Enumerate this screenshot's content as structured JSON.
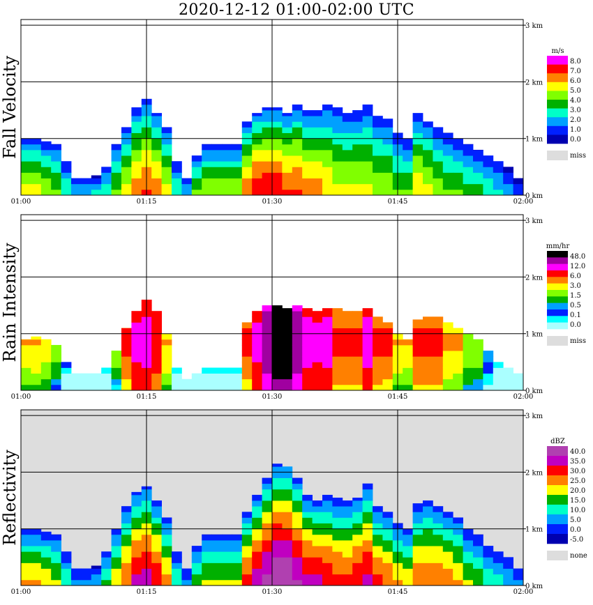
{
  "title": "2020-12-12   01:00-02:00 UTC",
  "chart_data": {
    "type": "heatmap",
    "x_ticks": [
      "01:00",
      "01:15",
      "01:30",
      "01:45",
      "02:00"
    ],
    "y_ticks": [
      "0 km",
      "1 km",
      "2 km",
      "3 km"
    ],
    "xlim": [
      "01:00",
      "02:00"
    ],
    "ylim": [
      0,
      3.1
    ],
    "grid": true,
    "panels": [
      {
        "label": "Fall Velocity",
        "unit": "m/s",
        "legend_labels": [
          "8.0",
          "7.0",
          "6.0",
          "5.0",
          "4.0",
          "3.0",
          "2.0",
          "1.0",
          "0.0"
        ],
        "legend_colors": [
          "#ff00ff",
          "#ff0000",
          "#ff8000",
          "#ffff00",
          "#80ff00",
          "#00b000",
          "#00ffc8",
          "#00a0ff",
          "#0020ff",
          "#0000b0"
        ],
        "missing_label": "miss",
        "missing_color": "#dddddd",
        "background": "#ffffff",
        "scale": [
          0,
          8
        ],
        "echo_top_km": [
          1.0,
          1.0,
          0.95,
          0.9,
          0.6,
          0.3,
          0.3,
          0.35,
          0.5,
          0.9,
          1.2,
          1.55,
          1.7,
          1.45,
          1.2,
          0.6,
          0.3,
          0.7,
          0.9,
          0.9,
          0.9,
          0.9,
          1.3,
          1.45,
          1.55,
          1.55,
          1.45,
          1.6,
          1.5,
          1.5,
          1.6,
          1.55,
          1.45,
          1.5,
          1.6,
          1.4,
          1.35,
          1.1,
          1.0,
          1.45,
          1.3,
          1.2,
          1.1,
          1.0,
          0.9,
          0.8,
          0.7,
          0.6,
          0.5,
          0.3
        ],
        "core_value": [
          5,
          5,
          4.5,
          4,
          3,
          2,
          2,
          2.5,
          3,
          4,
          5,
          6,
          6.5,
          6,
          5,
          3,
          2,
          4,
          4.5,
          4.5,
          4.5,
          4.5,
          6,
          7,
          7,
          7,
          6.5,
          6.5,
          6,
          6,
          5.5,
          5,
          5,
          5,
          5,
          4.5,
          4.5,
          4,
          4,
          5.5,
          5,
          4.5,
          4,
          4,
          3.5,
          3.5,
          3,
          2.5,
          2,
          1.5
        ]
      },
      {
        "label": "Rain Intensity",
        "unit": "mm/hr",
        "legend_labels": [
          "48.0",
          "12.0",
          "6.0",
          "3.0",
          "1.5",
          "0.5",
          "0.1",
          "0.0"
        ],
        "legend_colors": [
          "#000000",
          "#a000a0",
          "#ff00ff",
          "#ff0000",
          "#ff8000",
          "#ffff00",
          "#80ff00",
          "#00b000",
          "#00a0ff",
          "#0020ff",
          "#00ffff",
          "#aaffff"
        ],
        "missing_label": "miss",
        "missing_color": "#dddddd",
        "background": "#ffffff",
        "scale": [
          0,
          48
        ],
        "echo_top_km": [
          0.9,
          0.95,
          0.9,
          0.8,
          0.5,
          0.3,
          0.3,
          0.3,
          0.4,
          0.7,
          1.1,
          1.4,
          1.6,
          1.4,
          1.0,
          0.4,
          0.2,
          0.3,
          0.4,
          0.4,
          0.4,
          0.4,
          1.2,
          1.4,
          1.5,
          1.5,
          1.45,
          1.5,
          1.45,
          1.4,
          1.45,
          1.45,
          1.4,
          1.4,
          1.45,
          1.3,
          1.2,
          1.0,
          0.9,
          1.25,
          1.3,
          1.3,
          1.2,
          1.1,
          1.0,
          0.9,
          0.7,
          0.5,
          0.4,
          0.3
        ],
        "core_value": [
          3,
          3,
          2.5,
          1.5,
          0.5,
          0.1,
          0.1,
          0.2,
          0.5,
          2,
          6,
          12,
          12,
          8,
          3,
          0.5,
          0.1,
          0.3,
          0.5,
          0.5,
          0.5,
          0.5,
          6,
          12,
          24,
          48,
          48,
          24,
          12,
          12,
          12,
          6,
          6,
          6,
          12,
          6,
          6,
          3,
          3,
          6,
          6,
          6,
          3,
          3,
          1.5,
          1.5,
          0.5,
          0.3,
          0.1,
          0.1
        ]
      },
      {
        "label": "Reflectivity",
        "unit": "dBZ",
        "legend_labels": [
          "40.0",
          "35.0",
          "30.0",
          "25.0",
          "20.0",
          "15.0",
          "10.0",
          "5.0",
          "0.0",
          "-5.0"
        ],
        "legend_colors": [
          "#b040b0",
          "#c000c0",
          "#ff0000",
          "#ff8000",
          "#ffff00",
          "#00b000",
          "#00ffc8",
          "#00a0ff",
          "#0020ff",
          "#0000b0"
        ],
        "missing_label": "none",
        "missing_color": "#dddddd",
        "background": "#dddddd",
        "scale": [
          -5,
          40
        ],
        "echo_top_km": [
          1.0,
          1.0,
          0.95,
          0.9,
          0.6,
          0.3,
          0.3,
          0.35,
          0.6,
          1.0,
          1.4,
          1.65,
          1.75,
          1.5,
          1.2,
          0.6,
          0.3,
          0.7,
          0.9,
          0.9,
          0.9,
          0.9,
          1.3,
          1.6,
          1.9,
          2.15,
          2.1,
          1.9,
          1.6,
          1.5,
          1.6,
          1.55,
          1.5,
          1.55,
          1.8,
          1.4,
          1.3,
          1.1,
          1.0,
          1.45,
          1.5,
          1.4,
          1.3,
          1.2,
          1.0,
          0.9,
          0.7,
          0.6,
          0.5,
          0.3
        ],
        "core_value": [
          22,
          22,
          20,
          18,
          12,
          6,
          6,
          8,
          14,
          20,
          26,
          32,
          33,
          30,
          24,
          12,
          6,
          16,
          18,
          18,
          18,
          18,
          28,
          33,
          37,
          40,
          40,
          36,
          32,
          32,
          30,
          28,
          28,
          30,
          32,
          28,
          26,
          22,
          20,
          26,
          26,
          26,
          24,
          22,
          18,
          16,
          12,
          10,
          8,
          6
        ]
      }
    ]
  }
}
